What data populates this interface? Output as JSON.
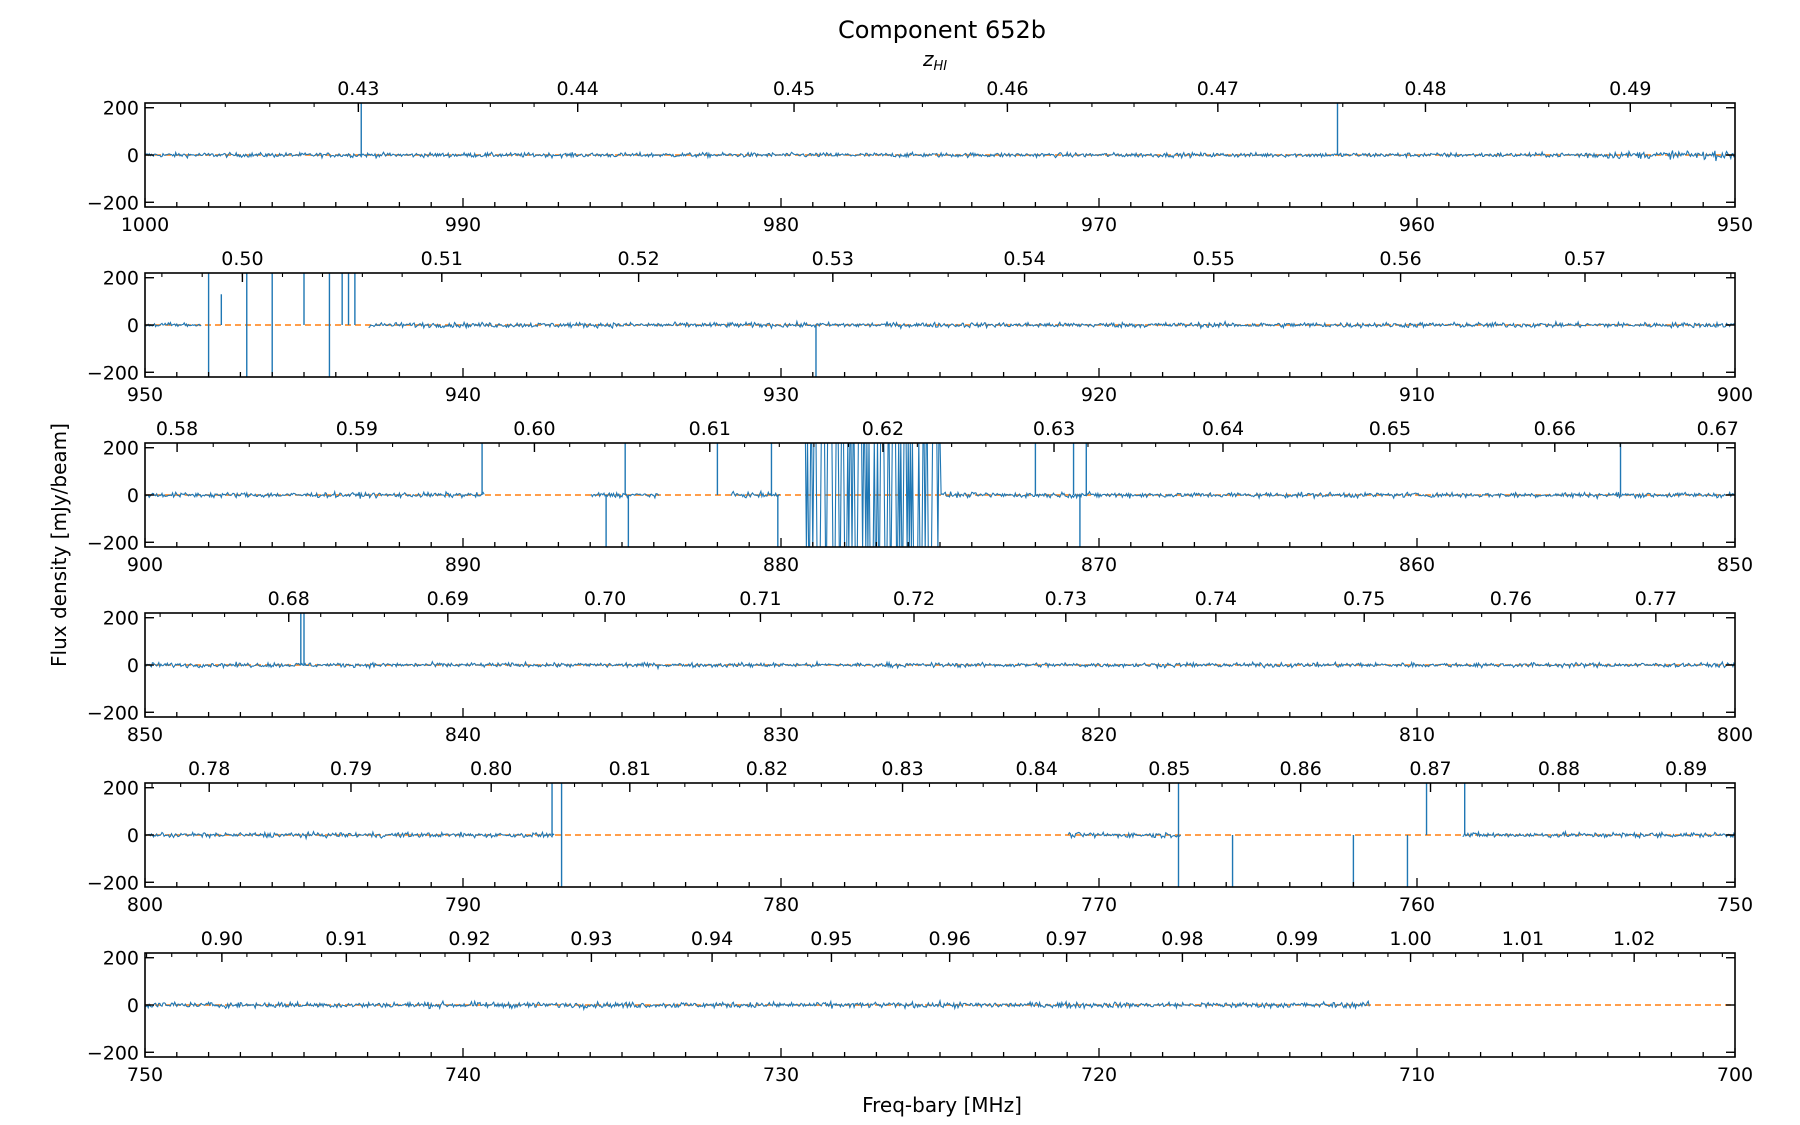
{
  "chart_data": {
    "type": "line",
    "title": "Component 652b",
    "xlabel": "Freq-bary [MHz]",
    "ylabel": "Flux density [mJy/beam]",
    "top_axis_label": "z_HI",
    "top_axis_label_main": "z",
    "top_axis_label_sub": "HI",
    "y_tick_labels": [
      "−200",
      "0",
      "200"
    ],
    "grid": false,
    "colors": {
      "spectrum": "#1f77b4",
      "model": "#ff7f0e"
    },
    "series": [
      {
        "values_description_unused": null
      }
    ],
    "panels": [
      {
        "xlim": [
          1000,
          950
        ],
        "ylim": [
          -220,
          220
        ],
        "x_tick_labels": [
          "1000",
          "990",
          "980",
          "970",
          "960",
          "950"
        ],
        "x_ticks": [
          1000,
          990,
          980,
          970,
          960,
          950
        ],
        "z_tick_labels": [
          "0.43",
          "0.44",
          "0.45",
          "0.46",
          "0.47",
          "0.48",
          "0.49"
        ],
        "z_ticks": [
          0.43,
          0.44,
          0.45,
          0.46,
          0.47,
          0.48,
          0.49
        ],
        "noise": 8,
        "tail_noise_boost": 1.6,
        "spikes": [
          [
            993.2,
            230
          ],
          [
            962.5,
            230
          ]
        ],
        "flagged": [],
        "bursts": [],
        "data_end": null
      },
      {
        "xlim": [
          950,
          900
        ],
        "ylim": [
          -220,
          220
        ],
        "x_tick_labels": [
          "950",
          "940",
          "930",
          "920",
          "910",
          "900"
        ],
        "x_ticks": [
          950,
          940,
          930,
          920,
          910,
          900
        ],
        "z_tick_labels": [
          "0.50",
          "0.51",
          "0.52",
          "0.53",
          "0.54",
          "0.55",
          "0.56",
          "0.57"
        ],
        "z_ticks": [
          0.5,
          0.51,
          0.52,
          0.53,
          0.54,
          0.55,
          0.56,
          0.57
        ],
        "noise": 9,
        "tail_noise_boost": 1.0,
        "spikes": [
          [
            948.0,
            230
          ],
          [
            948.0,
            -230
          ],
          [
            947.6,
            130
          ],
          [
            946.8,
            230
          ],
          [
            946.8,
            -230
          ],
          [
            946.0,
            230
          ],
          [
            946.0,
            -230
          ],
          [
            945.0,
            230
          ],
          [
            944.2,
            230
          ],
          [
            944.2,
            -230
          ],
          [
            943.8,
            230
          ],
          [
            943.6,
            230
          ],
          [
            943.4,
            230
          ],
          [
            928.9,
            -230
          ]
        ],
        "flagged": [
          [
            948.2,
            943.0
          ]
        ],
        "bursts": [],
        "data_end": null
      },
      {
        "xlim": [
          900,
          850
        ],
        "ylim": [
          -220,
          220
        ],
        "x_tick_labels": [
          "900",
          "890",
          "880",
          "870",
          "860",
          "850"
        ],
        "x_ticks": [
          900,
          890,
          880,
          870,
          860,
          850
        ],
        "z_tick_labels": [
          "0.58",
          "0.59",
          "0.60",
          "0.61",
          "0.62",
          "0.63",
          "0.64",
          "0.65",
          "0.66",
          "0.67"
        ],
        "z_ticks": [
          0.58,
          0.59,
          0.6,
          0.61,
          0.62,
          0.63,
          0.64,
          0.65,
          0.66,
          0.67
        ],
        "noise": 9,
        "tail_noise_boost": 1.0,
        "spikes": [
          [
            889.4,
            230
          ],
          [
            885.5,
            -230
          ],
          [
            884.9,
            230
          ],
          [
            884.8,
            -230
          ],
          [
            882.0,
            230
          ],
          [
            880.3,
            230
          ],
          [
            880.1,
            -230
          ],
          [
            872.0,
            230
          ],
          [
            870.8,
            230
          ],
          [
            870.4,
            230
          ],
          [
            870.6,
            -230
          ],
          [
            853.6,
            230
          ]
        ],
        "flagged": [
          [
            889.3,
            886.0
          ],
          [
            883.8,
            881.6
          ],
          [
            880.0,
            879.3
          ]
        ],
        "bursts": [
          [
            879.3,
            875.0
          ]
        ],
        "data_end": null
      },
      {
        "xlim": [
          850,
          800
        ],
        "ylim": [
          -220,
          220
        ],
        "x_tick_labels": [
          "850",
          "840",
          "830",
          "820",
          "810",
          "800"
        ],
        "x_ticks": [
          850,
          840,
          830,
          820,
          810,
          800
        ],
        "z_tick_labels": [
          "0.68",
          "0.69",
          "0.70",
          "0.71",
          "0.72",
          "0.73",
          "0.74",
          "0.75",
          "0.76",
          "0.77"
        ],
        "z_ticks": [
          0.68,
          0.69,
          0.7,
          0.71,
          0.72,
          0.73,
          0.74,
          0.75,
          0.76,
          0.77
        ],
        "noise": 8,
        "tail_noise_boost": 1.0,
        "spikes": [
          [
            845.1,
            230
          ],
          [
            845.0,
            230
          ]
        ],
        "flagged": [],
        "bursts": [],
        "data_end": null
      },
      {
        "xlim": [
          800,
          750
        ],
        "ylim": [
          -220,
          220
        ],
        "x_tick_labels": [
          "800",
          "790",
          "780",
          "770",
          "760",
          "750"
        ],
        "x_ticks": [
          800,
          790,
          780,
          770,
          760,
          750
        ],
        "z_tick_labels": [
          "0.78",
          "0.79",
          "0.80",
          "0.81",
          "0.82",
          "0.83",
          "0.84",
          "0.85",
          "0.86",
          "0.87",
          "0.88",
          "0.89"
        ],
        "z_ticks": [
          0.78,
          0.79,
          0.8,
          0.81,
          0.82,
          0.83,
          0.84,
          0.85,
          0.86,
          0.87,
          0.88,
          0.89
        ],
        "noise": 9,
        "tail_noise_boost": 1.0,
        "spikes": [
          [
            787.2,
            230
          ],
          [
            786.9,
            230
          ],
          [
            786.9,
            -230
          ],
          [
            767.5,
            230
          ],
          [
            767.5,
            -230
          ],
          [
            765.8,
            -230
          ],
          [
            762.0,
            -230
          ],
          [
            760.3,
            -230
          ],
          [
            759.7,
            230
          ],
          [
            758.5,
            230
          ]
        ],
        "flagged": [
          [
            787.1,
            771.0
          ],
          [
            767.4,
            758.6
          ]
        ],
        "bursts": [],
        "data_end": null
      },
      {
        "xlim": [
          750,
          700
        ],
        "ylim": [
          -220,
          220
        ],
        "x_tick_labels": [
          "750",
          "740",
          "730",
          "720",
          "710",
          "700"
        ],
        "x_ticks": [
          750,
          740,
          730,
          720,
          710,
          700
        ],
        "z_tick_labels": [
          "0.90",
          "0.91",
          "0.92",
          "0.93",
          "0.94",
          "0.95",
          "0.96",
          "0.97",
          "0.98",
          "0.99",
          "1.00",
          "1.01",
          "1.02"
        ],
        "z_ticks": [
          0.9,
          0.91,
          0.92,
          0.93,
          0.94,
          0.95,
          0.96,
          0.97,
          0.98,
          0.99,
          1.0,
          1.01,
          1.02
        ],
        "noise": 10,
        "tail_noise_boost": 1.3,
        "spikes": [],
        "flagged": [],
        "bursts": [],
        "data_end": 711.5
      }
    ]
  }
}
